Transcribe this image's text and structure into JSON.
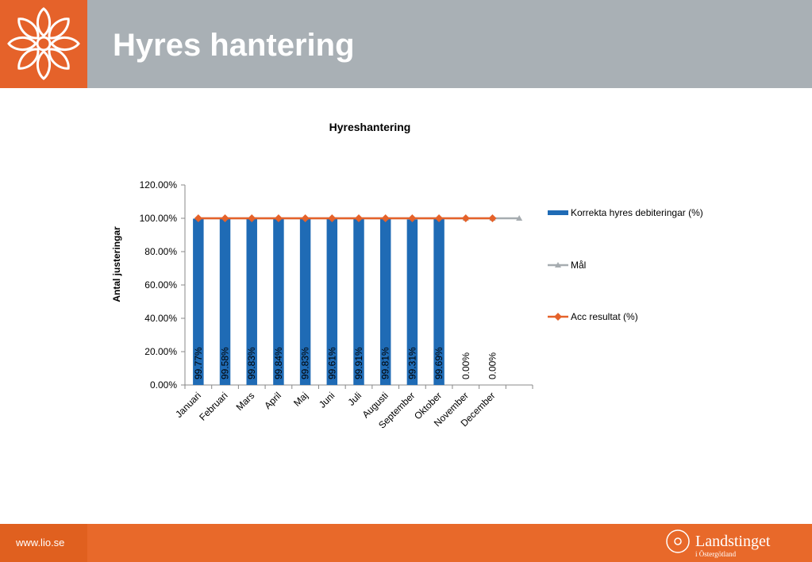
{
  "header": {
    "title": "Hyres hantering"
  },
  "footer": {
    "url": "www.lio.se",
    "logo_name": "Landstinget",
    "logo_region": "i Östergötland"
  },
  "chart_data": {
    "type": "bar",
    "title": "Hyreshantering",
    "y_axis_label": "Antal justeringar",
    "categories": [
      "Januari",
      "Februari",
      "Mars",
      "April",
      "Maj",
      "Juni",
      "Juli",
      "Augusti",
      "September",
      "Oktober",
      "November",
      "December",
      null
    ],
    "series": [
      {
        "name": "Korrekta hyres debiteringar (%)",
        "type": "bar",
        "color": "#1f6bb5",
        "values": [
          99.77,
          99.58,
          99.83,
          99.84,
          99.83,
          99.61,
          99.91,
          99.81,
          99.31,
          99.69,
          0,
          0,
          null
        ],
        "value_labels": [
          "99.77%",
          "99.58%",
          "99.83%",
          "99.84%",
          "99.83%",
          "99.61%",
          "99.91%",
          "99.81%",
          "99.31%",
          "99.69%",
          "0.00%",
          "0.00%",
          null
        ]
      },
      {
        "name": "Mål",
        "type": "line",
        "marker": "triangle",
        "color": "#a6acb0",
        "values": [
          100,
          100,
          100,
          100,
          100,
          100,
          100,
          100,
          100,
          100,
          100,
          100,
          100
        ]
      },
      {
        "name": "Acc resultat (%)",
        "type": "line",
        "marker": "diamond",
        "color": "#e5622a",
        "values": [
          100,
          100,
          100,
          100,
          100,
          100,
          100,
          100,
          100,
          100,
          100,
          100,
          null
        ]
      }
    ],
    "ylim": [
      0,
      120
    ],
    "yticks": [
      {
        "value": 0,
        "label": "0.00%"
      },
      {
        "value": 20,
        "label": "20.00%"
      },
      {
        "value": 40,
        "label": "40.00%"
      },
      {
        "value": 60,
        "label": "60.00%"
      },
      {
        "value": 80,
        "label": "80.00%"
      },
      {
        "value": 100,
        "label": "100.00%"
      },
      {
        "value": 120,
        "label": "120.00%"
      }
    ],
    "legend": "right"
  }
}
